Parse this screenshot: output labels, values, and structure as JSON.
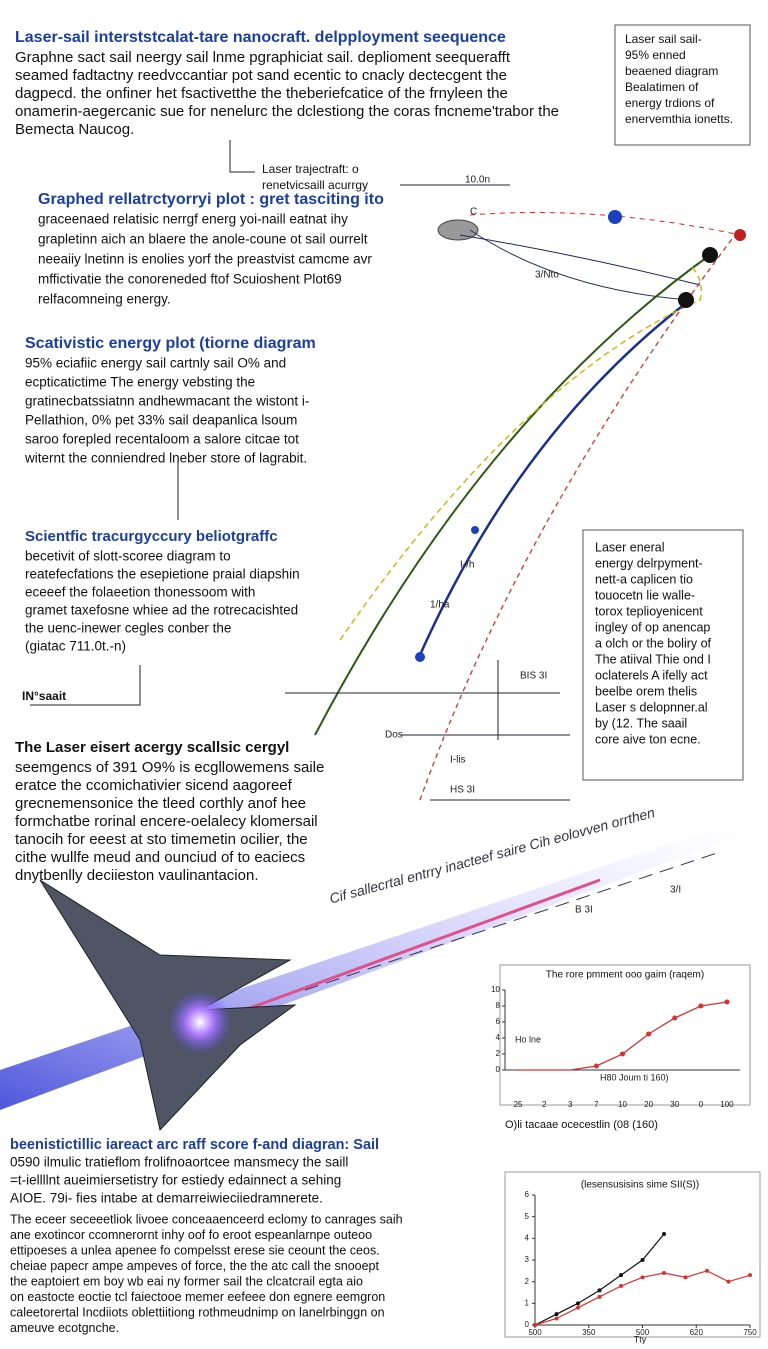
{
  "title": "Laser-sail interststcalat-tare nanocraft. delpployment seequence",
  "intro": [
    "Graphne sact sail neergy sail lnme pgraphiciat sail. deplioment seequerafft",
    "seamed fadtactny reedvccantiar pot sand ecentic to cnacly dectecgent the",
    "dagpecd. the onfiner het fsactivetthe the theberiefcatice of the frnyleen the",
    "onamerin-aegercanic sue for nenelurc the dclestiong the coras fncneme'trabor the",
    "Bemecta Naucog."
  ],
  "top_box": [
    "Laser sail sail-",
    "95% enned",
    "beaened diagram",
    "Bealatimen of",
    "energy trdions of",
    "enervemthia ionetts."
  ],
  "trajectory_label": [
    "Laser trajectraft: o",
    "renetvicsaill acurrgy"
  ],
  "diagram_labels": {
    "top": "10.0n",
    "craft": "C",
    "a": "3/Nto",
    "b": "1/ha",
    "c": "I-/h",
    "d": "BIS 3I",
    "e": "Dos",
    "f": "I-lis",
    "g": "HS 3I",
    "h": "3/I",
    "i": "B 3I"
  },
  "sections": [
    {
      "heading": "Graphed rellatrctyorryi plot : gret tasciting ito",
      "lines": [
        "graceenaed relatisic nerrgf energ yoi-naill eatnat ihy",
        "grapletinn aich an blaere the anole-coune ot sail ourrelt",
        "neeaiiy lnetinn is enolies yorf the preastvist camcme avr",
        "mffictivatie the conoreneded ftof Scuioshent Plot69",
        "relfacomneing energy."
      ]
    },
    {
      "heading": "Scativistic energy plot (tiorne diagram",
      "lines": [
        "95% eciafiic energy sail cartnly sail O% and",
        "ecpticatictime  The energy vebsting the",
        "gratinecbatssiatnn andhewmacant the wistont i-",
        "Pellathion, 0% pet 33% sail deapanlica lsoum",
        "saroo forepled recentaloom a salore citcae tot",
        "witernt the conniendred lneber store of lagrabit."
      ]
    },
    {
      "heading": "Scientfic tracurgyccury beliotgraffc",
      "lines": [
        "becetivit of slott-scoree diagram to",
        "reatefecfations the esepietione praial diapshin",
        "eceeef the folaeetion thonessoom with",
        "gramet taxefosne whiee ad the rotrecacishted",
        "the uenc-inewer cegles conber the",
        "(giatac 711.0t.-n)"
      ]
    },
    {
      "heading": "IN°saait",
      "lines": []
    },
    {
      "heading": "The Laser eisert acergy scallsic cergyl",
      "lines": [
        "seemgencs of 391 O9% is ecgllowemens saile",
        "eratce the ccomichativier sicend aagoreef",
        "grecnemensonice the tleed corthly anof hee",
        "formchatbe rorinal encere-oelalecy klomersail",
        "tanocih for eeest at sto timemetin ocilier, the",
        "cithe wullfe meud and ounciud of to eaciecs",
        "dnytbenlly  deciieston vaulinantacion."
      ]
    }
  ],
  "right_box": [
    "Laser eneral",
    "energy delrpyment-",
    "nett-a caplicen tio",
    "touocetn lie walle-",
    "torox teplioyenicent",
    "ingley of op anencap",
    "a olch or the boliry of",
    "The atiival Thie ond I",
    "oclaterels A ifelly act",
    "beelbe orem thelis",
    "Laser s delopnner.al",
    "by (12. The saail",
    "core aive ton ecne."
  ],
  "graphic_caption": "Cif sallecrtal entrry inacteef saire Cih eolovven orrthen",
  "chart1": {
    "type": "line",
    "title": "The rore pmment ooo gaim (raqem)",
    "categories": [
      "25",
      "2",
      "3",
      "7",
      "10",
      "20",
      "30",
      "0",
      "100"
    ],
    "values": [
      0,
      0,
      0,
      0.5,
      2,
      4.5,
      6.5,
      8,
      8.5
    ],
    "color": "#d83030",
    "ylim": [
      0,
      10
    ],
    "yticks": [
      0,
      2,
      4,
      6,
      8,
      10
    ],
    "legend": "Ho lne",
    "xlabel": "H80 Joum    ti 160)"
  },
  "chart1_caption": "O)li tacaae ocecestlin (08 (160)",
  "chart2": {
    "type": "line",
    "title": "(lesensusisins sime   SII(S))",
    "x": [
      0,
      1,
      2,
      3,
      4,
      5,
      6,
      7,
      8,
      9,
      10
    ],
    "xlim": [
      0,
      10
    ],
    "xticks": [
      {
        "value": 0,
        "label": "500"
      },
      {
        "value": 2.5,
        "label": "350"
      },
      {
        "value": 5,
        "label": "500"
      },
      {
        "value": 7.5,
        "label": "620"
      },
      {
        "value": 10,
        "label": "750"
      }
    ],
    "ylim": [
      0,
      6
    ],
    "yticks": [
      0,
      1,
      2,
      3,
      4,
      5,
      6
    ],
    "xlabel": "Tty",
    "series": [
      {
        "name": "black",
        "color": "#111111",
        "values": [
          0,
          0.5,
          1,
          1.6,
          2.3,
          3,
          4.2,
          null,
          null,
          null,
          null
        ]
      },
      {
        "name": "red",
        "color": "#d83030",
        "values": [
          0,
          0.3,
          0.8,
          1.3,
          1.8,
          2.2,
          2.4,
          2.2,
          2.5,
          2.0,
          2.3
        ]
      }
    ]
  },
  "bottom": {
    "heading": [
      "beenistictillic iareact arc raff score f-and diagran: Sail",
      "0590 ilmulic tratieflom frolifnoaortcee mansmecy the saill",
      "=t-iellllnt aueimiersetistry for estiedy edainnect a sehing",
      "AIOE. 79i- fies intabe at demarreiwieciiedramnerete."
    ],
    "lines": [
      "The eceer seceeetliok livoee conceaaenceerd eclomy to canrages saih",
      "ane exotincor ccomnerornt inhy oof  fo eroot espeanlarnpe outeoo",
      "ettipoeses a unlea apenee fo compelsst erese sie ceount the ceos.",
      "cheiae papecr ampe ampeves of force, the the atc call the snooept",
      "the eaptoiert em boy wb eai ny former sail the clcatcrail egta aio",
      "on eastocte eoctie tcl faiectooe memer eefeee don egnere eemgron",
      "caleetorertal Incdiiots oblettiitiong rothmeudnimp on lanelrbinggn on",
      "ameuve ecotgnche."
    ]
  }
}
